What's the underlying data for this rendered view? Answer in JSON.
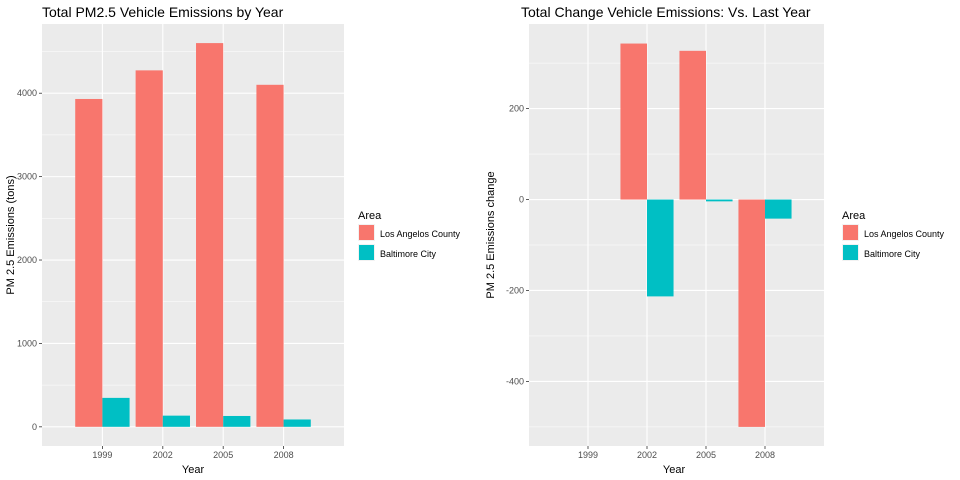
{
  "chart_data": [
    {
      "type": "bar",
      "title": "Total PM2.5 Vehicle Emissions by Year",
      "xlabel": "Year",
      "ylabel": "PM 2.5 Emissions (tons)",
      "categories": [
        "1999",
        "2002",
        "2005",
        "2008"
      ],
      "series": [
        {
          "name": "Los Angelos County",
          "color": "#F8766D",
          "values": [
            3931,
            4274,
            4601,
            4101
          ]
        },
        {
          "name": "Baltimore City",
          "color": "#00BFC4",
          "values": [
            347,
            134,
            130,
            88
          ]
        }
      ],
      "ylim": [
        -230,
        4830
      ],
      "yticks": [
        0,
        1000,
        2000,
        3000,
        4000
      ],
      "legend_title": "Area",
      "legend_position": "right",
      "grid": true
    },
    {
      "type": "bar",
      "title": "Total Change Vehicle Emissions: Vs. Last Year",
      "xlabel": "Year",
      "ylabel": "PM 2.5 Emissions change",
      "categories": [
        "1999",
        "2002",
        "2005",
        "2008"
      ],
      "series": [
        {
          "name": "Los Angelos County",
          "color": "#F8766D",
          "values": [
            0,
            343,
            327,
            -500
          ]
        },
        {
          "name": "Baltimore City",
          "color": "#00BFC4",
          "values": [
            0,
            -213,
            -4,
            -42
          ]
        }
      ],
      "ylim": [
        -542,
        386
      ],
      "yticks": [
        -400,
        -200,
        0,
        200
      ],
      "legend_title": "Area",
      "legend_position": "right",
      "grid": true
    }
  ]
}
